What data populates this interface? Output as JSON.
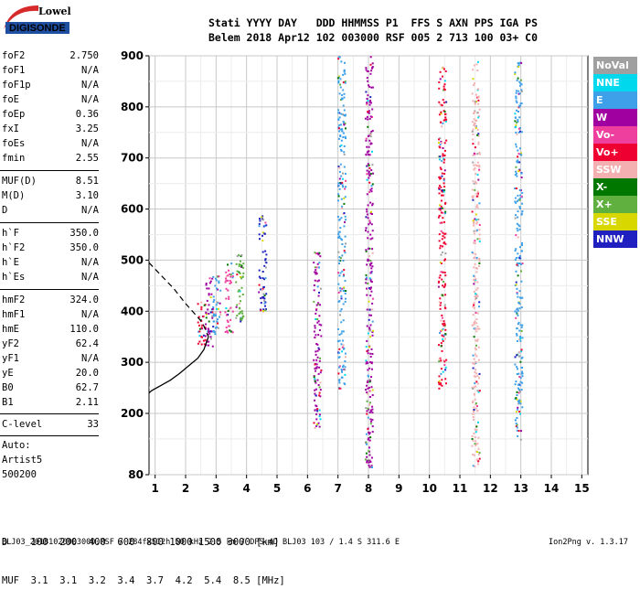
{
  "logo": {
    "line1": "Lowell",
    "line2": "DIGISONDE"
  },
  "header": {
    "line1": "Stati YYYY DAY   DDD HHMMSS P1  FFS S AXN PPS IGA PS",
    "line2": "Belem 2018 Apr12 102 003000 RSF 005 2 713 100 03+ C0"
  },
  "params": {
    "foF2": {
      "label": "foF2",
      "value": "2.750"
    },
    "foF1": {
      "label": "foF1",
      "value": "N/A"
    },
    "foF1p": {
      "label": "foF1p",
      "value": "N/A"
    },
    "foE": {
      "label": "foE",
      "value": "N/A"
    },
    "foEp": {
      "label": "foEp",
      "value": "0.36"
    },
    "fxI": {
      "label": "fxI",
      "value": "3.25"
    },
    "foEs": {
      "label": "foEs",
      "value": "N/A"
    },
    "fmin": {
      "label": "fmin",
      "value": "2.55"
    },
    "MUF": {
      "label": "MUF(D)",
      "value": "8.51"
    },
    "MD": {
      "label": "M(D)",
      "value": "3.10"
    },
    "D": {
      "label": "D",
      "value": "N/A"
    },
    "hF": {
      "label": "h`F",
      "value": "350.0"
    },
    "hF2": {
      "label": "h`F2",
      "value": "350.0"
    },
    "hE": {
      "label": "h`E",
      "value": "N/A"
    },
    "hEs": {
      "label": "h`Es",
      "value": "N/A"
    },
    "hmF2": {
      "label": "hmF2",
      "value": "324.0"
    },
    "hmF1": {
      "label": "hmF1",
      "value": "N/A"
    },
    "hmE": {
      "label": "hmE",
      "value": "110.0"
    },
    "yF2": {
      "label": "yF2",
      "value": "62.4"
    },
    "yF1": {
      "label": "yF1",
      "value": "N/A"
    },
    "yE": {
      "label": "yE",
      "value": "20.0"
    },
    "B0": {
      "label": "B0",
      "value": "62.7"
    },
    "B1": {
      "label": "B1",
      "value": "2.11"
    },
    "Clevel": {
      "label": "C-level",
      "value": "33"
    }
  },
  "auto": {
    "line1": "Auto:",
    "line2": "Artist5",
    "line3": "500200"
  },
  "legend": [
    {
      "label": "NoVal",
      "color": "#a0a0a0"
    },
    {
      "label": "NNE",
      "color": "#00d8ee"
    },
    {
      "label": "E",
      "color": "#3da0e8"
    },
    {
      "label": "W",
      "color": "#a000a0"
    },
    {
      "label": "Vo-",
      "color": "#ee3e9e"
    },
    {
      "label": "Vo+",
      "color": "#ee0030"
    },
    {
      "label": "SSW",
      "color": "#f4b0b0"
    },
    {
      "label": "X-",
      "color": "#007800"
    },
    {
      "label": "X+",
      "color": "#60b040"
    },
    {
      "label": "SSE",
      "color": "#d8d800"
    },
    {
      "label": "NNW",
      "color": "#2020c0"
    }
  ],
  "bottom_table": {
    "line1": "D    100  200  400  600  800 1000 1500 3000 [km]",
    "line2": "MUF  3.1  3.1  3.2  3.4  3.7  4.2  5.4  8.5 [MHz]"
  },
  "footer": {
    "file": "BLJ03_20181020003000.RSF / 284fx512h 50 kHz 2.5 km / DPS-4D BLJ03 103 / 1.4 S 311.6 E",
    "version": "Ion2Png v. 1.3.17"
  },
  "chart_data": {
    "type": "scatter",
    "x_ticks": [
      "1",
      "2",
      "3",
      "4",
      "5",
      "6",
      "7",
      "8",
      "9",
      "10",
      "11",
      "12",
      "13",
      "14",
      "15"
    ],
    "y_ticks": [
      "80",
      "200",
      "300",
      "400",
      "500",
      "600",
      "700",
      "800",
      "900"
    ],
    "xlim": [
      0.8,
      15.2
    ],
    "ylim": [
      80,
      900
    ],
    "grid": true,
    "profile_curve": {
      "x": [
        2.75,
        2.6,
        2.4,
        2.1,
        1.8,
        1.5,
        1.2,
        0.9,
        0.8
      ],
      "y": [
        350,
        325,
        308,
        293,
        278,
        265,
        255,
        245,
        240
      ]
    },
    "virtual_curve": {
      "x": [
        0.8,
        1.2,
        1.6,
        2.0,
        2.3,
        2.55,
        2.75
      ],
      "y": [
        495,
        470,
        445,
        415,
        395,
        378,
        350
      ]
    },
    "trace_columns": [
      {
        "freq": 2.5,
        "hmin": 330,
        "hmax": 420,
        "color": "#ee0030"
      },
      {
        "freq": 2.75,
        "hmin": 330,
        "hmax": 470,
        "color": "#a000a0"
      },
      {
        "freq": 3.0,
        "hmin": 350,
        "hmax": 480,
        "color": "#3da0e8"
      },
      {
        "freq": 3.4,
        "hmin": 360,
        "hmax": 500,
        "color": "#ee3e9e"
      },
      {
        "freq": 3.75,
        "hmin": 370,
        "hmax": 520,
        "color": "#60b040"
      },
      {
        "freq": 4.5,
        "hmin": 400,
        "hmax": 590,
        "color": "#2020c0"
      },
      {
        "freq": 6.3,
        "hmin": 170,
        "hmax": 520,
        "color": "#a000a0"
      },
      {
        "freq": 7.1,
        "hmin": 250,
        "hmax": 900,
        "color": "#3da0e8"
      },
      {
        "freq": 8.0,
        "hmin": 90,
        "hmax": 900,
        "color": "#a000a0"
      },
      {
        "freq": 10.4,
        "hmin": 250,
        "hmax": 880,
        "color": "#ee0030"
      },
      {
        "freq": 11.5,
        "hmin": 90,
        "hmax": 890,
        "color": "#f4b0b0"
      },
      {
        "freq": 12.9,
        "hmin": 150,
        "hmax": 890,
        "color": "#3da0e8"
      }
    ]
  }
}
